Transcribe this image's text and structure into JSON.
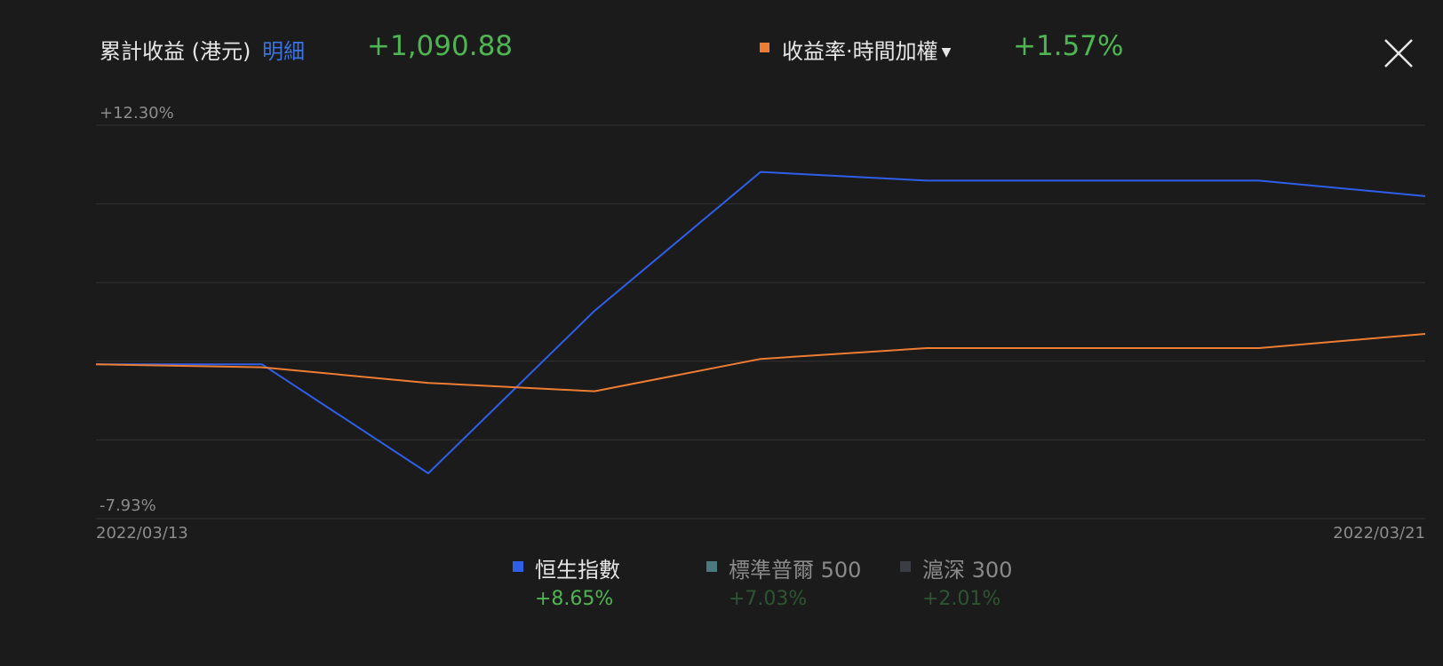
{
  "header": {
    "title": "累計收益 (港元)",
    "detail_link": "明細",
    "total_value": "+1,090.88",
    "metric_label": "收益率·時間加權",
    "metric_caret": "▼",
    "rate_value": "+1.57%"
  },
  "icons": {
    "close": "close-icon",
    "caret": "caret-down-icon"
  },
  "colors": {
    "background": "#1b1b1b",
    "positive": "#4fb553",
    "portfolio_line": "#ee7d34",
    "hsi_line": "#2f5fe8",
    "link": "#3b74e0",
    "grid": "#333333"
  },
  "chart_data": {
    "type": "line",
    "x": [
      "2022/03/13",
      "2022/03/14",
      "2022/03/15",
      "2022/03/16",
      "2022/03/17",
      "2022/03/18",
      "2022/03/19",
      "2022/03/20",
      "2022/03/21"
    ],
    "x_tick_labels": [
      "2022/03/13",
      "2022/03/21"
    ],
    "ylim": [
      -7.93,
      12.3
    ],
    "y_tick_labels": [
      "+12.30%",
      "-7.93%"
    ],
    "grid": true,
    "series": [
      {
        "name": "收益率·時間加權",
        "color": "#ee7d34",
        "values": [
          0.0,
          -0.15,
          -0.95,
          -1.38,
          0.28,
          0.84,
          0.84,
          0.84,
          1.57
        ]
      },
      {
        "name": "恒生指數",
        "color": "#2f5fe8",
        "values": [
          0.0,
          0.0,
          -5.6,
          2.75,
          9.9,
          9.45,
          9.45,
          9.45,
          8.65
        ]
      }
    ]
  },
  "legend": [
    {
      "name": "恒生指數",
      "return": "+8.65%",
      "swatch": "#2f5fe8",
      "name_color": "#e6e6e6",
      "return_color": "#4fb553"
    },
    {
      "name": "標準普爾 500",
      "return": "+7.03%",
      "swatch": "#4a7a80",
      "name_color": "#8a8a8a",
      "return_color": "#2e5532"
    },
    {
      "name": "滬深 300",
      "return": "+2.01%",
      "swatch": "#3b3d44",
      "name_color": "#8a8a8a",
      "return_color": "#2e5532"
    }
  ]
}
